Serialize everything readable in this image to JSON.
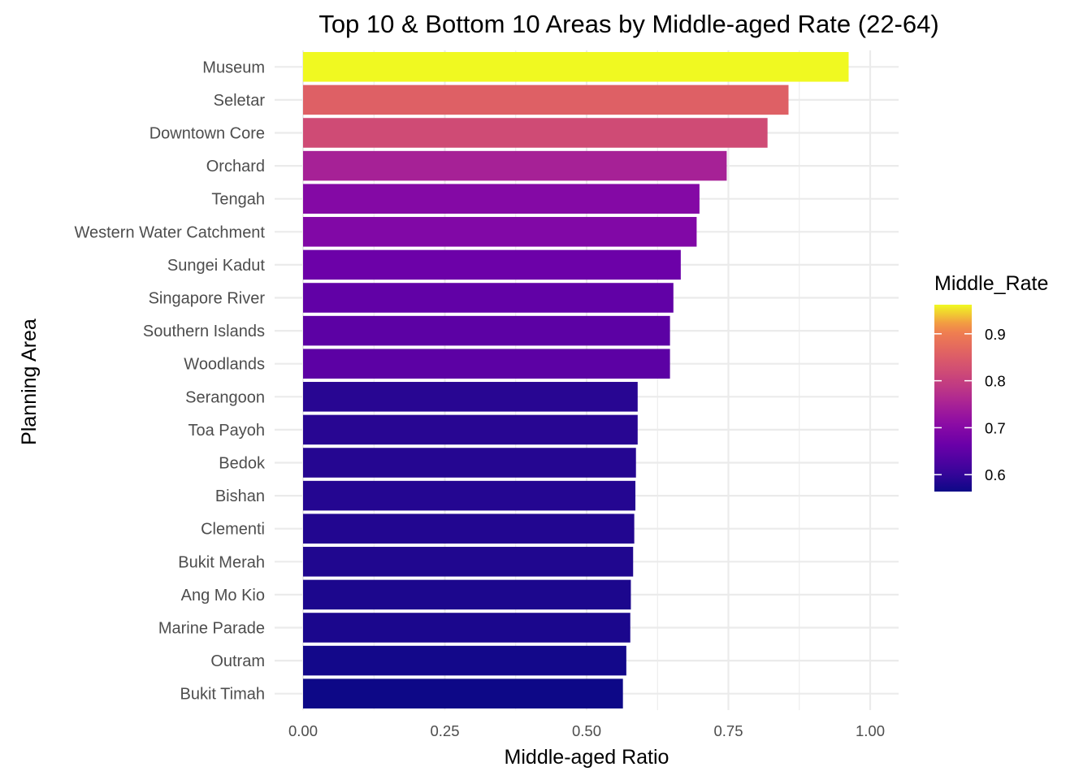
{
  "chart_data": {
    "type": "bar",
    "orientation": "horizontal",
    "title": "Top 10 & Bottom 10 Areas by Middle-aged Rate (22-64)",
    "xlabel": "Middle-aged Ratio",
    "ylabel": "Planning Area",
    "categories": [
      "Museum",
      "Seletar",
      "Downtown Core",
      "Orchard",
      "Tengah",
      "Western Water Catchment",
      "Sungei Kadut",
      "Singapore River",
      "Southern Islands",
      "Woodlands",
      "Serangoon",
      "Toa Payoh",
      "Bedok",
      "Bishan",
      "Clementi",
      "Bukit Merah",
      "Ang Mo Kio",
      "Marine Parade",
      "Outram",
      "Bukit Timah"
    ],
    "values": [
      0.962,
      0.856,
      0.819,
      0.747,
      0.699,
      0.694,
      0.666,
      0.653,
      0.647,
      0.647,
      0.59,
      0.59,
      0.587,
      0.586,
      0.584,
      0.582,
      0.578,
      0.577,
      0.57,
      0.564
    ],
    "xlim": [
      0,
      1.05
    ],
    "x_ticks": [
      0,
      0.25,
      0.5,
      0.75,
      1.0
    ],
    "x_tick_labels": [
      "0.00",
      "0.25",
      "0.50",
      "0.75",
      "1.00"
    ],
    "grid": true,
    "legend": {
      "title": "Middle_Rate",
      "position": "right",
      "type": "colorbar",
      "range": [
        0.564,
        0.962
      ],
      "ticks": [
        0.6,
        0.7,
        0.8,
        0.9
      ],
      "tick_labels": [
        "0.6",
        "0.7",
        "0.8",
        "0.9"
      ]
    },
    "colormap": "plasma",
    "colors": {
      "low": "#0d0887",
      "high": "#f0f921"
    }
  }
}
